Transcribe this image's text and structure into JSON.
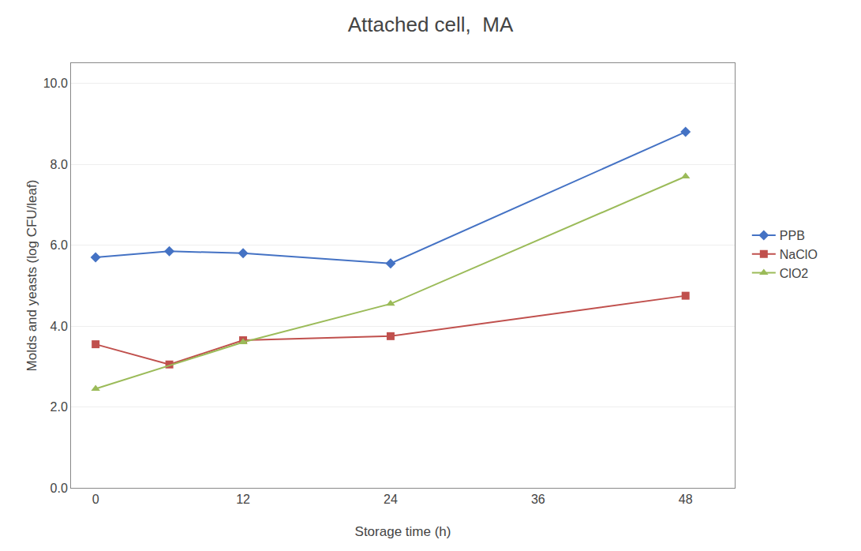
{
  "chart_data": {
    "type": "line",
    "title": "Attached cell,  MA",
    "x_title": "Storage time (h)",
    "y_title": "Molds and yeasts (log CFU/leaf)",
    "series": [
      {
        "name": "PPB",
        "x": [
          0,
          6,
          12,
          24,
          48
        ],
        "values": [
          5.7,
          5.85,
          5.8,
          5.55,
          8.8
        ],
        "color": "#4472C4",
        "marker": "diamond"
      },
      {
        "name": "NaClO",
        "x": [
          0,
          6,
          12,
          24,
          48
        ],
        "values": [
          3.55,
          3.05,
          3.65,
          3.75,
          4.75
        ],
        "color": "#C0504D",
        "marker": "square"
      },
      {
        "name": "ClO2",
        "x": [
          0,
          12,
          24,
          48
        ],
        "values": [
          2.45,
          3.6,
          4.55,
          7.7
        ],
        "color": "#9BBB59",
        "marker": "triangle-up"
      }
    ],
    "xlim": [
      -2,
      52
    ],
    "xticks": [
      0,
      12,
      24,
      36,
      48
    ],
    "ylim": [
      0.0,
      10.5
    ],
    "yticks": [
      {
        "value": 0,
        "label": "0.0"
      },
      {
        "value": 2,
        "label": "2.0"
      },
      {
        "value": 4,
        "label": "4.0"
      },
      {
        "value": 6,
        "label": "6.0"
      },
      {
        "value": 8,
        "label": "8.0"
      },
      {
        "value": 10,
        "label": "10.0"
      }
    ],
    "grid": "y",
    "legend": "right"
  }
}
